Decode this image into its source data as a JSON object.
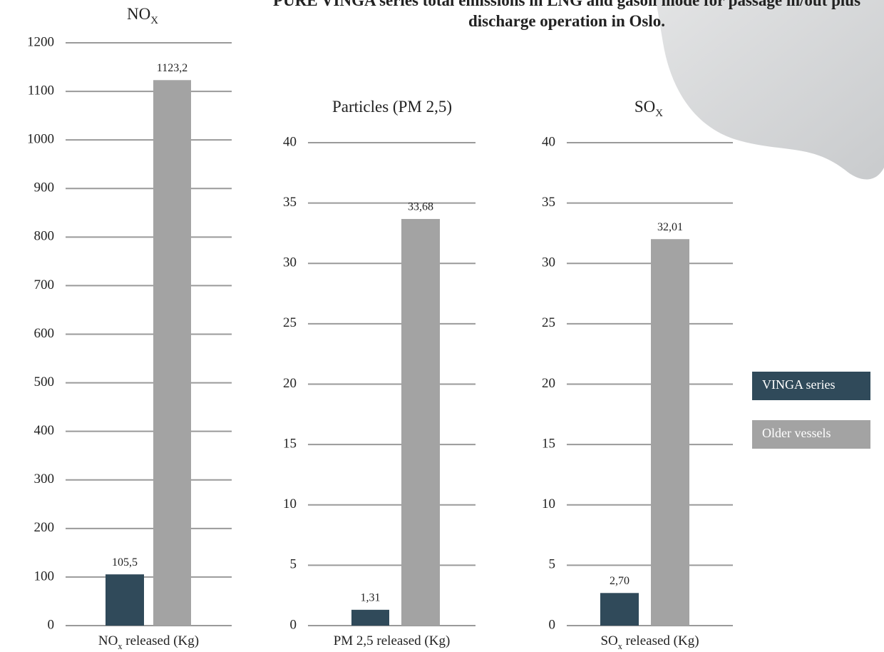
{
  "title": "PURE VINGA series total emissions in LNG and gasoil mode for passage in/out plus discharge operation in Oslo.",
  "legend": [
    {
      "name": "VINGA series",
      "color": "#304a5a"
    },
    {
      "name": "Older vessels",
      "color": "#a3a3a3"
    }
  ],
  "chart_data": [
    {
      "type": "bar",
      "title": [
        {
          "text": "NO"
        },
        {
          "text": "X",
          "sub": true
        }
      ],
      "xlabel": [
        {
          "text": "NO"
        },
        {
          "text": "x",
          "sub": true
        },
        {
          "text": " released (Kg)"
        }
      ],
      "series": [
        {
          "color": "#304a5a",
          "values": [
            105.5
          ],
          "value_labels": [
            "105,5"
          ]
        },
        {
          "color": "#a3a3a3",
          "values": [
            1123.2
          ],
          "value_labels": [
            "1123,2"
          ]
        }
      ],
      "ylim": [
        0,
        1200
      ],
      "yticks": [
        0,
        100,
        200,
        300,
        400,
        500,
        600,
        700,
        800,
        900,
        1000,
        1100,
        1200
      ],
      "grid": true
    },
    {
      "type": "bar",
      "title": [
        {
          "text": "Particles (PM 2,5)"
        }
      ],
      "xlabel": [
        {
          "text": "PM 2,5 released (Kg)"
        }
      ],
      "series": [
        {
          "color": "#304a5a",
          "values": [
            1.31
          ],
          "value_labels": [
            "1,31"
          ]
        },
        {
          "color": "#a3a3a3",
          "values": [
            33.68
          ],
          "value_labels": [
            "33,68"
          ]
        }
      ],
      "ylim": [
        0,
        40
      ],
      "yticks": [
        0,
        5,
        10,
        15,
        20,
        25,
        30,
        35,
        40
      ],
      "grid": true
    },
    {
      "type": "bar",
      "title": [
        {
          "text": "SO"
        },
        {
          "text": "X",
          "sub": true
        }
      ],
      "xlabel": [
        {
          "text": "SO"
        },
        {
          "text": "x",
          "sub": true
        },
        {
          "text": " released (Kg)"
        }
      ],
      "series": [
        {
          "color": "#304a5a",
          "values": [
            2.7
          ],
          "value_labels": [
            "2,70"
          ]
        },
        {
          "color": "#a3a3a3",
          "values": [
            32.01
          ],
          "value_labels": [
            "32,01"
          ]
        }
      ],
      "ylim": [
        0,
        40
      ],
      "yticks": [
        0,
        5,
        10,
        15,
        20,
        25,
        30,
        35,
        40
      ],
      "grid": true
    }
  ]
}
